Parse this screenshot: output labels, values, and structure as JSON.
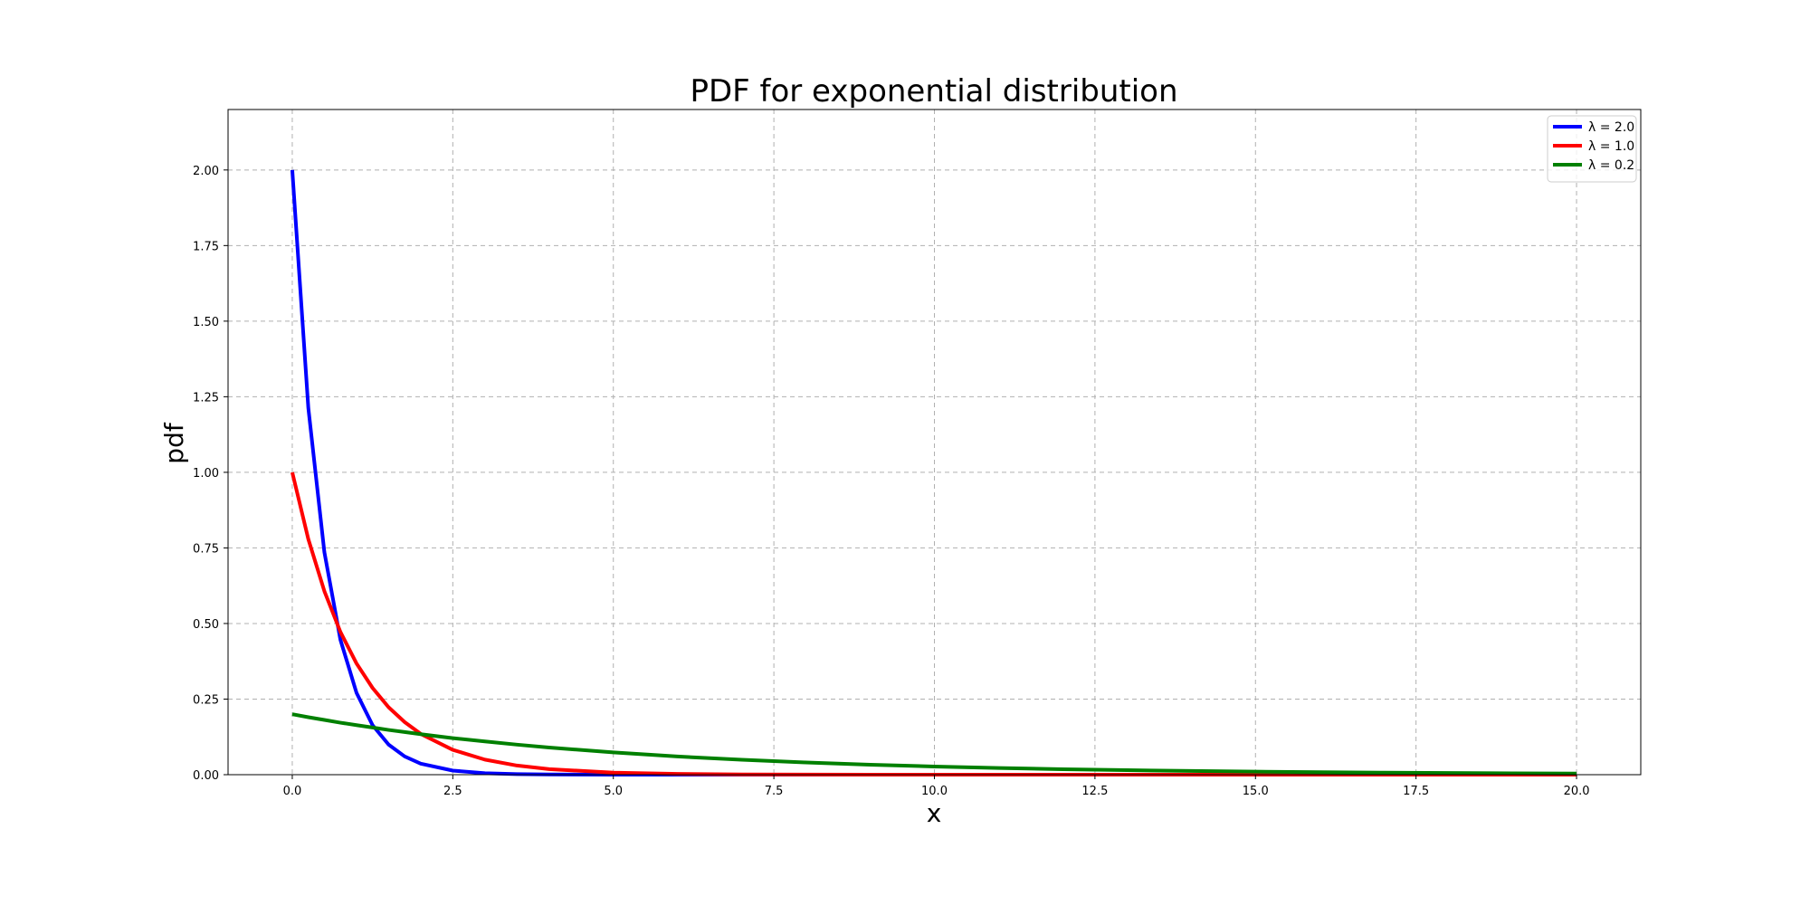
{
  "chart_data": {
    "type": "line",
    "title": "PDF for exponential distribution",
    "xlabel": "x",
    "ylabel": "pdf",
    "xlim": [
      -1.0,
      21.0
    ],
    "ylim": [
      0.0,
      2.2
    ],
    "xticks": [
      0.0,
      2.5,
      5.0,
      7.5,
      10.0,
      12.5,
      15.0,
      17.5,
      20.0
    ],
    "xtick_labels": [
      "0.0",
      "2.5",
      "5.0",
      "7.5",
      "10.0",
      "12.5",
      "15.0",
      "17.5",
      "20.0"
    ],
    "yticks": [
      0.0,
      0.25,
      0.5,
      0.75,
      1.0,
      1.25,
      1.5,
      1.75,
      2.0
    ],
    "ytick_labels": [
      "0.00",
      "0.25",
      "0.50",
      "0.75",
      "1.00",
      "1.25",
      "1.50",
      "1.75",
      "2.00"
    ],
    "grid": true,
    "legend_position": "top-right",
    "x": [
      0.0,
      0.25,
      0.5,
      0.75,
      1.0,
      1.25,
      1.5,
      1.75,
      2.0,
      2.5,
      3.0,
      3.5,
      4.0,
      5.0,
      6.0,
      7.0,
      8.0,
      9.0,
      10.0,
      11.0,
      12.0,
      13.0,
      14.0,
      15.0,
      16.0,
      17.0,
      18.0,
      19.0,
      20.0
    ],
    "series": [
      {
        "name": "λ = 2.0",
        "color": "#0000ff",
        "values": [
          2.0,
          1.213,
          0.736,
          0.446,
          0.271,
          0.164,
          0.0996,
          0.0604,
          0.0366,
          0.0135,
          0.00496,
          0.00182,
          0.00067,
          9.08e-05,
          1.23e-05,
          0.0,
          0.0,
          0.0,
          0.0,
          0.0,
          0.0,
          0.0,
          0.0,
          0.0,
          0.0,
          0.0,
          0.0,
          0.0,
          0.0
        ]
      },
      {
        "name": "λ = 1.0",
        "color": "#ff0000",
        "values": [
          1.0,
          0.779,
          0.607,
          0.472,
          0.368,
          0.287,
          0.223,
          0.174,
          0.135,
          0.0821,
          0.0498,
          0.0302,
          0.0183,
          0.00674,
          0.00248,
          0.000912,
          0.000335,
          0.000123,
          4.54e-05,
          1.67e-05,
          0.0,
          0.0,
          0.0,
          0.0,
          0.0,
          0.0,
          0.0,
          0.0,
          0.0
        ]
      },
      {
        "name": "λ = 0.2",
        "color": "#008000",
        "values": [
          0.2,
          0.19,
          0.181,
          0.172,
          0.164,
          0.156,
          0.148,
          0.141,
          0.134,
          0.121,
          0.11,
          0.0993,
          0.0899,
          0.0736,
          0.0602,
          0.0493,
          0.0404,
          0.0331,
          0.0271,
          0.0222,
          0.0181,
          0.0149,
          0.0122,
          0.00996,
          0.00815,
          0.00667,
          0.00546,
          0.00447,
          0.00366
        ]
      }
    ]
  }
}
